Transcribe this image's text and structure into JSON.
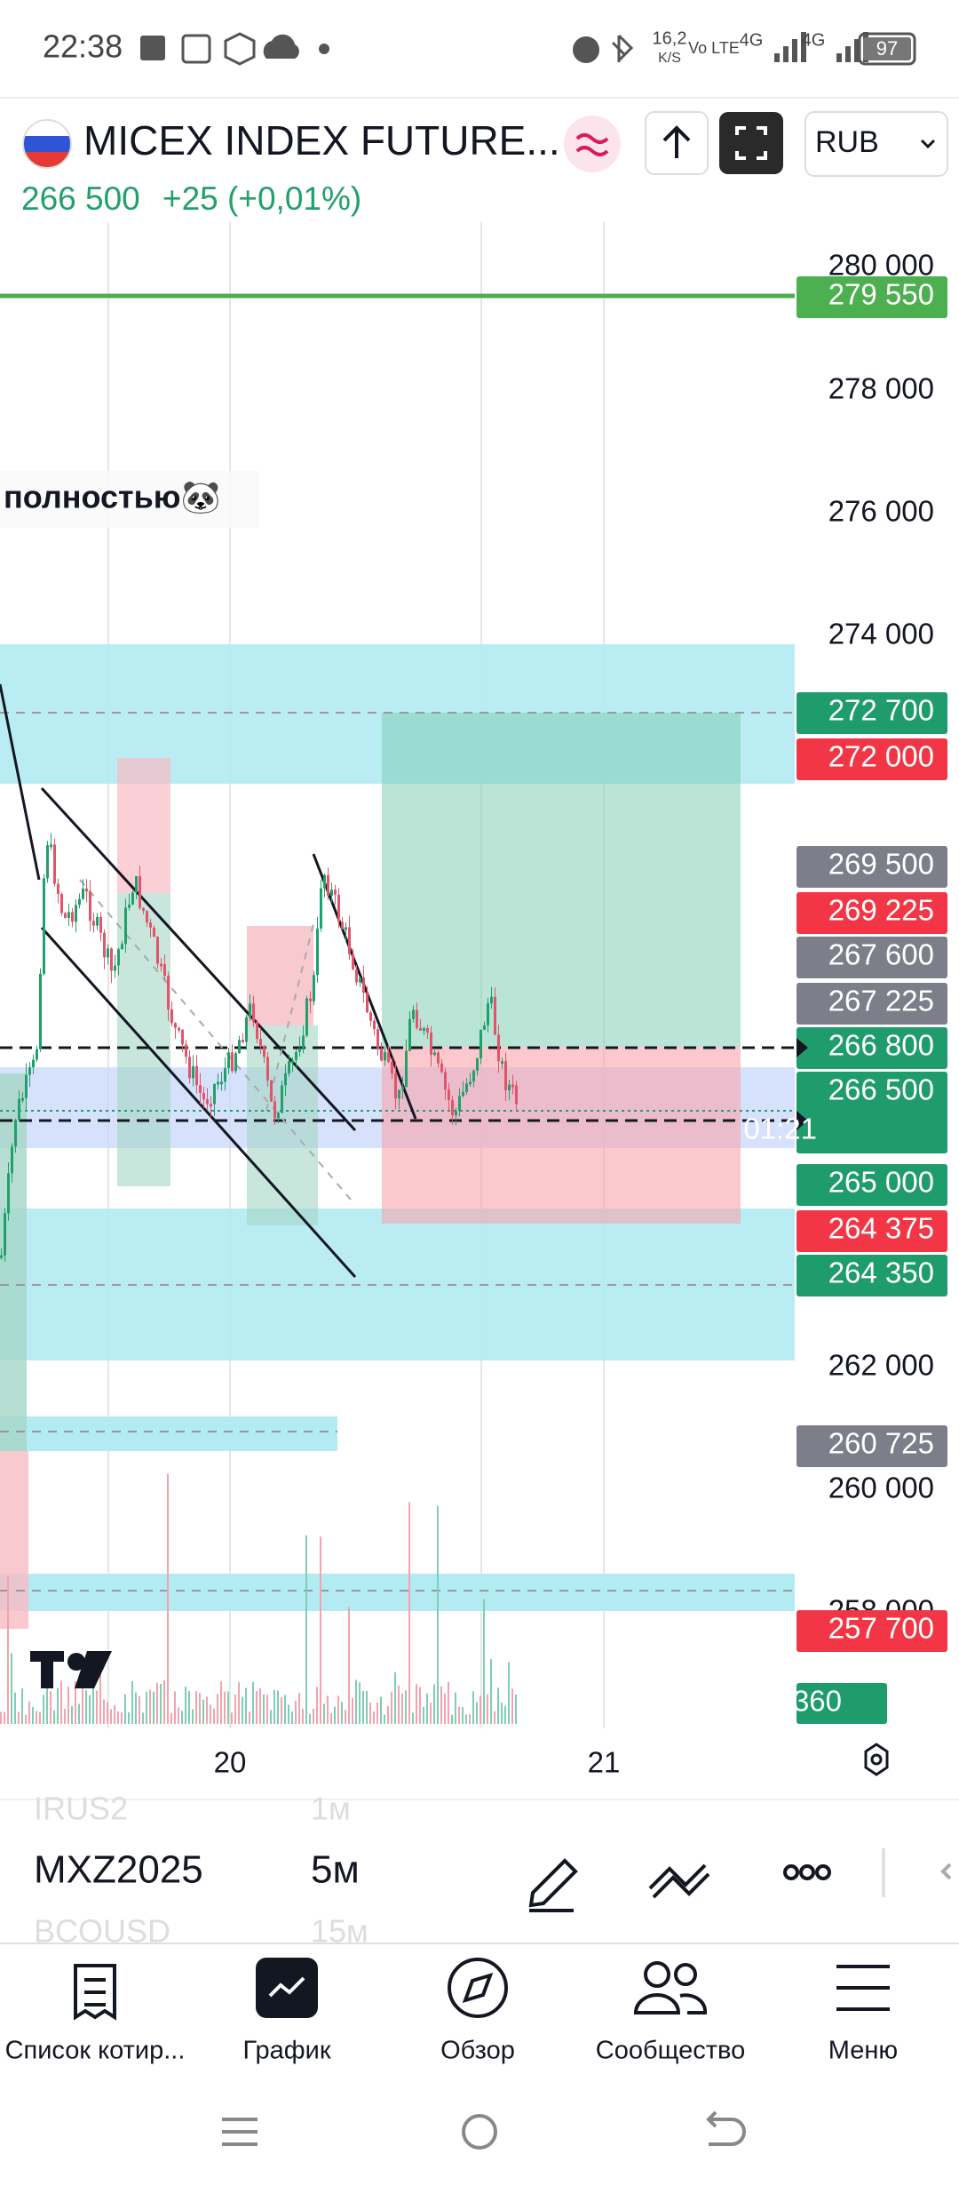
{
  "status_bar": {
    "time": "22:38",
    "speed": "16,2",
    "speed_unit": "K/S",
    "network": "Vo LTE",
    "signal_1": "4G",
    "signal_2": "4G",
    "battery": "97"
  },
  "header": {
    "symbol": "MICEX INDEX FUTURE...",
    "currency": "RUB",
    "price": "266 500",
    "change": "+25 (+0,01%)"
  },
  "chart": {
    "annotation": "полностью🐼",
    "axis_labels": [
      "280 000",
      "278 000",
      "276 000",
      "274 000",
      "262 000",
      "260 000",
      "258 000"
    ],
    "price_tags": [
      "279 550",
      "272 700",
      "272 000",
      "269 500",
      "269 225",
      "267 600",
      "267 225",
      "266 800",
      "266 500",
      "265 000",
      "264 375",
      "264 350",
      "260 725",
      "257 700"
    ],
    "countdown": "01:21",
    "volume_tag": "360",
    "x_labels": [
      "20",
      "21"
    ]
  },
  "toolbar": {
    "symbols": [
      {
        "symbol": "IRUS2",
        "interval": "1м"
      },
      {
        "symbol": "MXZ2025",
        "interval": "5м"
      },
      {
        "symbol": "BCOUSD",
        "interval": "15м"
      }
    ]
  },
  "nav": {
    "items": [
      "Список котир...",
      "График",
      "Обзор",
      "Сообщество",
      "Меню"
    ]
  }
}
